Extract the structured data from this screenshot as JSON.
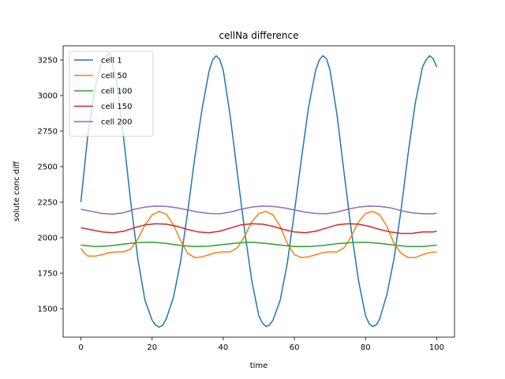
{
  "chart_data": {
    "type": "line",
    "title": "cellNa difference",
    "xlabel": "time",
    "ylabel": "solute conc diff",
    "xlim": [
      -5,
      105
    ],
    "ylim": [
      1300,
      3350
    ],
    "xticks": [
      0,
      20,
      40,
      60,
      80,
      100
    ],
    "yticks": [
      1500,
      1750,
      2000,
      2250,
      2500,
      2750,
      3000,
      3250
    ],
    "grid": false,
    "legend": "top-left",
    "series": [
      {
        "name": "cell 1",
        "color": "#1f77b4",
        "x": [
          0,
          2,
          4,
          6,
          8,
          10,
          12,
          14,
          16,
          18,
          20,
          21,
          22,
          23,
          24,
          26,
          28,
          30,
          32,
          34,
          36,
          37,
          38,
          39,
          40,
          42,
          44,
          46,
          48,
          50,
          51,
          52,
          53,
          54,
          56,
          58,
          60,
          62,
          64,
          66,
          67,
          68,
          69,
          70,
          72,
          74,
          76,
          78,
          80,
          81,
          82,
          83,
          84,
          86,
          88,
          90,
          92,
          94,
          96,
          97,
          98,
          99,
          100
        ],
        "y": [
          2250,
          2740,
          3060,
          3250,
          3300,
          3100,
          2700,
          2250,
          1850,
          1560,
          1420,
          1385,
          1370,
          1385,
          1430,
          1580,
          1830,
          2180,
          2560,
          2900,
          3170,
          3250,
          3280,
          3255,
          3180,
          2850,
          2450,
          2050,
          1700,
          1450,
          1400,
          1375,
          1385,
          1420,
          1560,
          1820,
          2180,
          2560,
          2920,
          3180,
          3250,
          3280,
          3260,
          3180,
          2860,
          2450,
          2050,
          1700,
          1450,
          1395,
          1375,
          1385,
          1430,
          1600,
          1850,
          2200,
          2600,
          2950,
          3200,
          3250,
          3280,
          3260,
          3200
        ]
      },
      {
        "name": "cell 50",
        "color": "#ff7f0e",
        "x": [
          0,
          1,
          2,
          4,
          6,
          8,
          10,
          12,
          14,
          16,
          18,
          20,
          22,
          24,
          26,
          28,
          30,
          32,
          34,
          36,
          38,
          40,
          42,
          44,
          46,
          48,
          50,
          52,
          54,
          56,
          58,
          60,
          62,
          64,
          66,
          68,
          70,
          72,
          74,
          76,
          78,
          80,
          82,
          84,
          86,
          88,
          90,
          92,
          94,
          96,
          98,
          100
        ],
        "y": [
          1925,
          1890,
          1870,
          1870,
          1880,
          1895,
          1900,
          1900,
          1920,
          1990,
          2090,
          2160,
          2185,
          2165,
          2090,
          1980,
          1890,
          1860,
          1865,
          1880,
          1895,
          1900,
          1900,
          1930,
          2010,
          2110,
          2170,
          2185,
          2160,
          2080,
          1960,
          1880,
          1860,
          1865,
          1880,
          1895,
          1900,
          1900,
          1930,
          2010,
          2110,
          2170,
          2185,
          2160,
          2080,
          1960,
          1890,
          1860,
          1860,
          1880,
          1895,
          1900
        ]
      },
      {
        "name": "cell 100",
        "color": "#2ca02c",
        "x": [
          0,
          4,
          8,
          12,
          16,
          20,
          24,
          28,
          32,
          36,
          40,
          44,
          48,
          52,
          56,
          60,
          64,
          68,
          72,
          76,
          80,
          84,
          88,
          92,
          96,
          100
        ],
        "y": [
          1948,
          1938,
          1942,
          1955,
          1965,
          1968,
          1960,
          1945,
          1938,
          1940,
          1952,
          1962,
          1968,
          1960,
          1948,
          1938,
          1938,
          1945,
          1958,
          1965,
          1968,
          1960,
          1948,
          1938,
          1938,
          1948
        ]
      },
      {
        "name": "cell 150",
        "color": "#d62728",
        "x": [
          0,
          3,
          6,
          9,
          12,
          15,
          18,
          21,
          24,
          27,
          30,
          33,
          36,
          39,
          42,
          45,
          48,
          51,
          54,
          57,
          60,
          63,
          66,
          69,
          72,
          75,
          78,
          81,
          84,
          87,
          90,
          93,
          96,
          99,
          100
        ],
        "y": [
          2070,
          2055,
          2040,
          2035,
          2045,
          2070,
          2090,
          2098,
          2095,
          2080,
          2058,
          2040,
          2035,
          2045,
          2068,
          2090,
          2098,
          2095,
          2080,
          2058,
          2040,
          2035,
          2045,
          2068,
          2090,
          2098,
          2095,
          2080,
          2058,
          2040,
          2030,
          2030,
          2040,
          2040,
          2045
        ]
      },
      {
        "name": "cell 200",
        "color": "#9467bd",
        "x": [
          0,
          3,
          6,
          9,
          12,
          15,
          18,
          21,
          24,
          27,
          30,
          33,
          36,
          39,
          42,
          45,
          48,
          51,
          54,
          57,
          60,
          63,
          66,
          69,
          72,
          75,
          78,
          81,
          84,
          87,
          90,
          93,
          96,
          99,
          100
        ],
        "y": [
          2200,
          2185,
          2170,
          2165,
          2175,
          2200,
          2215,
          2222,
          2220,
          2210,
          2195,
          2180,
          2170,
          2168,
          2180,
          2200,
          2215,
          2222,
          2220,
          2210,
          2195,
          2180,
          2170,
          2168,
          2180,
          2200,
          2215,
          2222,
          2220,
          2210,
          2190,
          2175,
          2168,
          2168,
          2172
        ]
      }
    ]
  }
}
